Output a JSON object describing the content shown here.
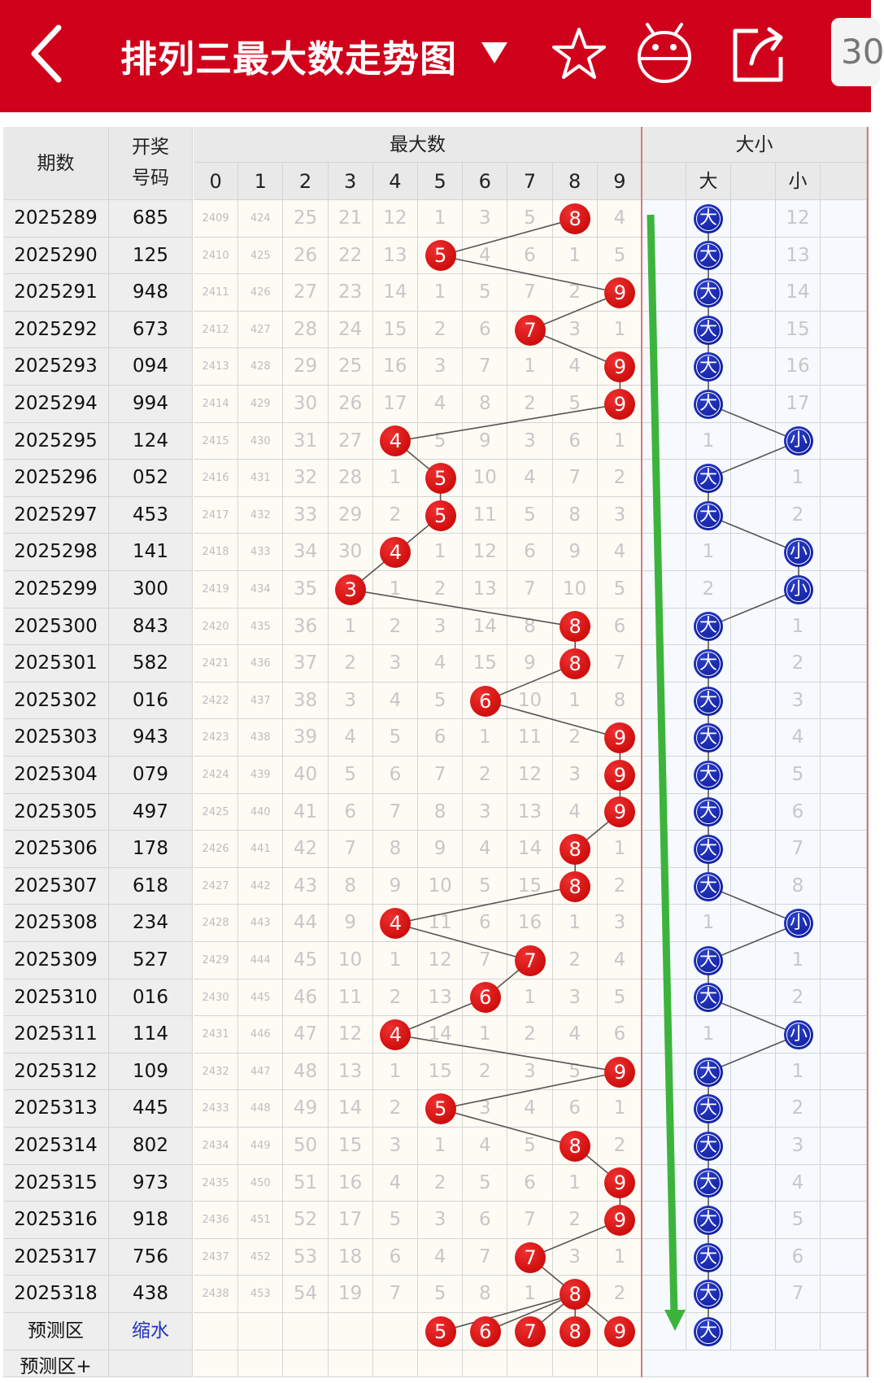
{
  "header": {
    "title": "排列三最大数走势图",
    "chip_text": "30",
    "icons": [
      "back-arrow-icon",
      "dropdown-caret-icon",
      "star-icon",
      "robot-icon",
      "share-icon"
    ],
    "bg_color": "#d0021b"
  },
  "table": {
    "col_period": "期数",
    "col_draw_line1": "开奖",
    "col_draw_line2": "号码",
    "group_max": "最大数",
    "group_bs": "大小",
    "digits": [
      "0",
      "1",
      "2",
      "3",
      "4",
      "5",
      "6",
      "7",
      "8",
      "9"
    ],
    "bs_labels": [
      "大",
      "小"
    ],
    "rows": [
      {
        "period": "2025289",
        "num": "685",
        "max": 8,
        "bs": "大",
        "miss": [
          "2409",
          "424",
          "25",
          "21",
          "12",
          "1",
          "3",
          "5",
          "",
          "4"
        ],
        "bs_miss": [
          "",
          "12"
        ]
      },
      {
        "period": "2025290",
        "num": "125",
        "max": 5,
        "bs": "大",
        "miss": [
          "2410",
          "425",
          "26",
          "22",
          "13",
          "",
          "4",
          "6",
          "1",
          "5"
        ],
        "bs_miss": [
          "",
          "13"
        ]
      },
      {
        "period": "2025291",
        "num": "948",
        "max": 9,
        "bs": "大",
        "miss": [
          "2411",
          "426",
          "27",
          "23",
          "14",
          "1",
          "5",
          "7",
          "2",
          ""
        ],
        "bs_miss": [
          "",
          "14"
        ]
      },
      {
        "period": "2025292",
        "num": "673",
        "max": 7,
        "bs": "大",
        "miss": [
          "2412",
          "427",
          "28",
          "24",
          "15",
          "2",
          "6",
          "",
          "3",
          "1"
        ],
        "bs_miss": [
          "",
          "15"
        ]
      },
      {
        "period": "2025293",
        "num": "094",
        "max": 9,
        "bs": "大",
        "miss": [
          "2413",
          "428",
          "29",
          "25",
          "16",
          "3",
          "7",
          "1",
          "4",
          ""
        ],
        "bs_miss": [
          "",
          "16"
        ]
      },
      {
        "period": "2025294",
        "num": "994",
        "max": 9,
        "bs": "大",
        "miss": [
          "2414",
          "429",
          "30",
          "26",
          "17",
          "4",
          "8",
          "2",
          "5",
          ""
        ],
        "bs_miss": [
          "",
          "17"
        ]
      },
      {
        "period": "2025295",
        "num": "124",
        "max": 4,
        "bs": "小",
        "miss": [
          "2415",
          "430",
          "31",
          "27",
          "",
          "5",
          "9",
          "3",
          "6",
          "1"
        ],
        "bs_miss": [
          "1",
          ""
        ]
      },
      {
        "period": "2025296",
        "num": "052",
        "max": 5,
        "bs": "大",
        "miss": [
          "2416",
          "431",
          "32",
          "28",
          "1",
          "",
          "10",
          "4",
          "7",
          "2"
        ],
        "bs_miss": [
          "",
          "1"
        ]
      },
      {
        "period": "2025297",
        "num": "453",
        "max": 5,
        "bs": "大",
        "miss": [
          "2417",
          "432",
          "33",
          "29",
          "2",
          "",
          "11",
          "5",
          "8",
          "3"
        ],
        "bs_miss": [
          "",
          "2"
        ]
      },
      {
        "period": "2025298",
        "num": "141",
        "max": 4,
        "bs": "小",
        "miss": [
          "2418",
          "433",
          "34",
          "30",
          "",
          "1",
          "12",
          "6",
          "9",
          "4"
        ],
        "bs_miss": [
          "1",
          ""
        ]
      },
      {
        "period": "2025299",
        "num": "300",
        "max": 3,
        "bs": "小",
        "miss": [
          "2419",
          "434",
          "35",
          "",
          "1",
          "2",
          "13",
          "7",
          "10",
          "5"
        ],
        "bs_miss": [
          "2",
          ""
        ]
      },
      {
        "period": "2025300",
        "num": "843",
        "max": 8,
        "bs": "大",
        "miss": [
          "2420",
          "435",
          "36",
          "1",
          "2",
          "3",
          "14",
          "8",
          "",
          "6"
        ],
        "bs_miss": [
          "",
          "1"
        ]
      },
      {
        "period": "2025301",
        "num": "582",
        "max": 8,
        "bs": "大",
        "miss": [
          "2421",
          "436",
          "37",
          "2",
          "3",
          "4",
          "15",
          "9",
          "",
          "7"
        ],
        "bs_miss": [
          "",
          "2"
        ]
      },
      {
        "period": "2025302",
        "num": "016",
        "max": 6,
        "bs": "大",
        "miss": [
          "2422",
          "437",
          "38",
          "3",
          "4",
          "5",
          "",
          "10",
          "1",
          "8"
        ],
        "bs_miss": [
          "",
          "3"
        ]
      },
      {
        "period": "2025303",
        "num": "943",
        "max": 9,
        "bs": "大",
        "miss": [
          "2423",
          "438",
          "39",
          "4",
          "5",
          "6",
          "1",
          "11",
          "2",
          ""
        ],
        "bs_miss": [
          "",
          "4"
        ]
      },
      {
        "period": "2025304",
        "num": "079",
        "max": 9,
        "bs": "大",
        "miss": [
          "2424",
          "439",
          "40",
          "5",
          "6",
          "7",
          "2",
          "12",
          "3",
          ""
        ],
        "bs_miss": [
          "",
          "5"
        ]
      },
      {
        "period": "2025305",
        "num": "497",
        "max": 9,
        "bs": "大",
        "miss": [
          "2425",
          "440",
          "41",
          "6",
          "7",
          "8",
          "3",
          "13",
          "4",
          ""
        ],
        "bs_miss": [
          "",
          "6"
        ]
      },
      {
        "period": "2025306",
        "num": "178",
        "max": 8,
        "bs": "大",
        "miss": [
          "2426",
          "441",
          "42",
          "7",
          "8",
          "9",
          "4",
          "14",
          "",
          "1"
        ],
        "bs_miss": [
          "",
          "7"
        ]
      },
      {
        "period": "2025307",
        "num": "618",
        "max": 8,
        "bs": "大",
        "miss": [
          "2427",
          "442",
          "43",
          "8",
          "9",
          "10",
          "5",
          "15",
          "",
          "2"
        ],
        "bs_miss": [
          "",
          "8"
        ]
      },
      {
        "period": "2025308",
        "num": "234",
        "max": 4,
        "bs": "小",
        "miss": [
          "2428",
          "443",
          "44",
          "9",
          "",
          "11",
          "6",
          "16",
          "1",
          "3"
        ],
        "bs_miss": [
          "1",
          ""
        ]
      },
      {
        "period": "2025309",
        "num": "527",
        "max": 7,
        "bs": "大",
        "miss": [
          "2429",
          "444",
          "45",
          "10",
          "1",
          "12",
          "7",
          "",
          "2",
          "4"
        ],
        "bs_miss": [
          "",
          "1"
        ]
      },
      {
        "period": "2025310",
        "num": "016",
        "max": 6,
        "bs": "大",
        "miss": [
          "2430",
          "445",
          "46",
          "11",
          "2",
          "13",
          "",
          "1",
          "3",
          "5"
        ],
        "bs_miss": [
          "",
          "2"
        ]
      },
      {
        "period": "2025311",
        "num": "114",
        "max": 4,
        "bs": "小",
        "miss": [
          "2431",
          "446",
          "47",
          "12",
          "",
          "14",
          "1",
          "2",
          "4",
          "6"
        ],
        "bs_miss": [
          "1",
          ""
        ]
      },
      {
        "period": "2025312",
        "num": "109",
        "max": 9,
        "bs": "大",
        "miss": [
          "2432",
          "447",
          "48",
          "13",
          "1",
          "15",
          "2",
          "3",
          "5",
          ""
        ],
        "bs_miss": [
          "",
          "1"
        ]
      },
      {
        "period": "2025313",
        "num": "445",
        "max": 5,
        "bs": "大",
        "miss": [
          "2433",
          "448",
          "49",
          "14",
          "2",
          "",
          "3",
          "4",
          "6",
          "1"
        ],
        "bs_miss": [
          "",
          "2"
        ]
      },
      {
        "period": "2025314",
        "num": "802",
        "max": 8,
        "bs": "大",
        "miss": [
          "2434",
          "449",
          "50",
          "15",
          "3",
          "1",
          "4",
          "5",
          "",
          "2"
        ],
        "bs_miss": [
          "",
          "3"
        ]
      },
      {
        "period": "2025315",
        "num": "973",
        "max": 9,
        "bs": "大",
        "miss": [
          "2435",
          "450",
          "51",
          "16",
          "4",
          "2",
          "5",
          "6",
          "1",
          ""
        ],
        "bs_miss": [
          "",
          "4"
        ]
      },
      {
        "period": "2025316",
        "num": "918",
        "max": 9,
        "bs": "大",
        "miss": [
          "2436",
          "451",
          "52",
          "17",
          "5",
          "3",
          "6",
          "7",
          "2",
          ""
        ],
        "bs_miss": [
          "",
          "5"
        ]
      },
      {
        "period": "2025317",
        "num": "756",
        "max": 7,
        "bs": "大",
        "miss": [
          "2437",
          "452",
          "53",
          "18",
          "6",
          "4",
          "7",
          "",
          "3",
          "1"
        ],
        "bs_miss": [
          "",
          "6"
        ]
      },
      {
        "period": "2025318",
        "num": "438",
        "max": 8,
        "bs": "大",
        "miss": [
          "2438",
          "453",
          "54",
          "19",
          "7",
          "5",
          "8",
          "1",
          "",
          "2"
        ],
        "bs_miss": [
          "",
          "7"
        ]
      }
    ],
    "predict": {
      "label": "预测区",
      "link": "缩水",
      "balls": [
        5,
        6,
        7,
        8,
        9
      ],
      "bs": "大"
    },
    "predict2_label": "预测区+"
  },
  "colors": {
    "ball_red": "#d00000",
    "ball_blue": "#0b1996",
    "trend_arrow": "#3cb43c"
  }
}
